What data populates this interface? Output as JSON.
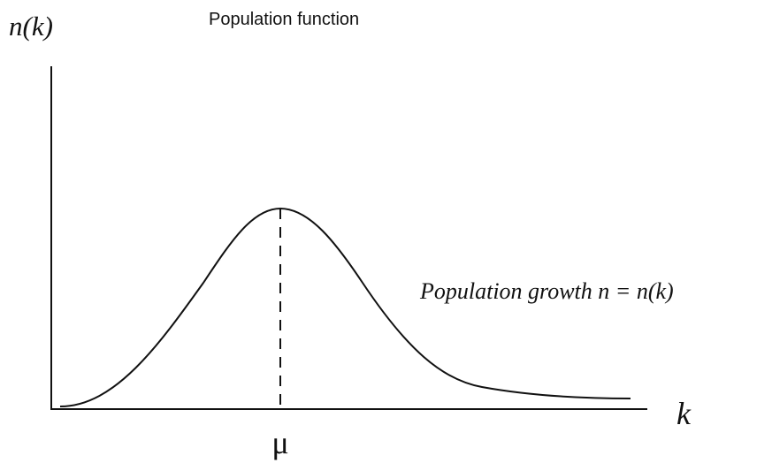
{
  "y_axis_label": "n(k)",
  "title": "Population function",
  "curve_label": "Population growth n = n(k)",
  "x_axis_label": "k",
  "peak_label": "μ"
}
